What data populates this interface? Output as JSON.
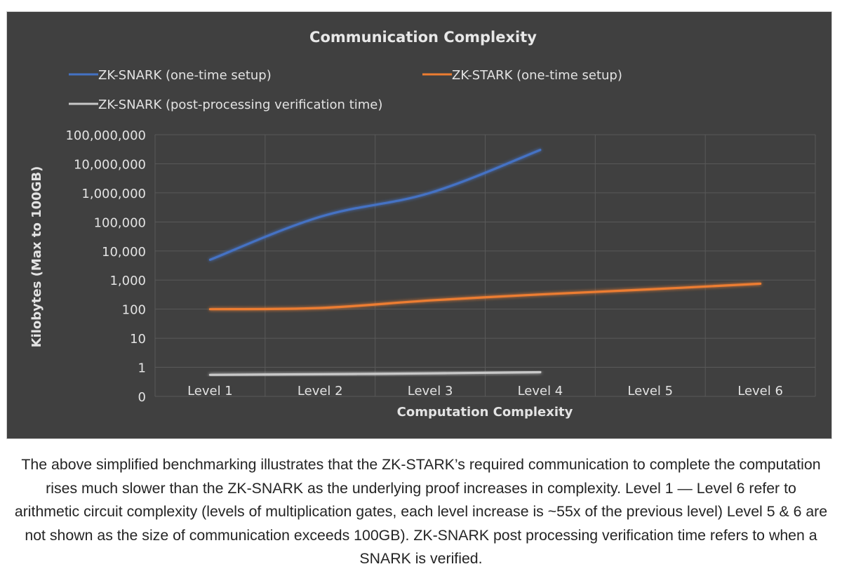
{
  "caption": "The above simplified benchmarking illustrates that the ZK-STARK’s required communication to complete the computation rises much slower than the ZK-SNARK as the underlying proof increases in complexity. Level 1 — Level 6 refer to arithmetic circuit complexity (levels of multiplication gates, each level increase is ~55x of the previous level) Level 5 & 6 are not shown as the size of communication exceeds 100GB). ZK-SNARK post processing verification time refers to when a SNARK is verified.",
  "colors": {
    "background": "#404040",
    "grid": "#595959",
    "snark_setup": "#4472c4",
    "stark_setup": "#ed7d31",
    "snark_verify": "#c8c8c8"
  },
  "chart_data": {
    "type": "line",
    "title": "Communication  Complexity",
    "xlabel": "Computation Complexity",
    "ylabel": "Kilobytes (Max to 100GB)",
    "yscale": "log",
    "ylim": [
      0.1,
      100000000
    ],
    "categories": [
      "Level 1",
      "Level 2",
      "Level 3",
      "Level 4",
      "Level 5",
      "Level 6"
    ],
    "y_ticks": [
      {
        "value": 100000000,
        "label": "100,000,000"
      },
      {
        "value": 10000000,
        "label": "10,000,000"
      },
      {
        "value": 1000000,
        "label": "1,000,000"
      },
      {
        "value": 100000,
        "label": "100,000"
      },
      {
        "value": 10000,
        "label": "10,000"
      },
      {
        "value": 1000,
        "label": "1,000"
      },
      {
        "value": 100,
        "label": "100"
      },
      {
        "value": 10,
        "label": "10"
      },
      {
        "value": 1,
        "label": "1"
      },
      {
        "value": 0.1,
        "label": "0"
      }
    ],
    "legend_position": "top-left",
    "series": [
      {
        "name": "ZK-SNARK (one-time setup)",
        "color": "#4472c4",
        "values": [
          5000,
          150000,
          1000000,
          30000000,
          null,
          null
        ]
      },
      {
        "name": "ZK-STARK (one-time setup)",
        "color": "#ed7d31",
        "values": [
          100,
          110,
          200,
          320,
          480,
          750
        ]
      },
      {
        "name": "ZK-SNARK (post-processing verification time)",
        "color": "#c8c8c8",
        "values": [
          0.55,
          0.58,
          0.62,
          0.68,
          null,
          null
        ]
      }
    ]
  }
}
